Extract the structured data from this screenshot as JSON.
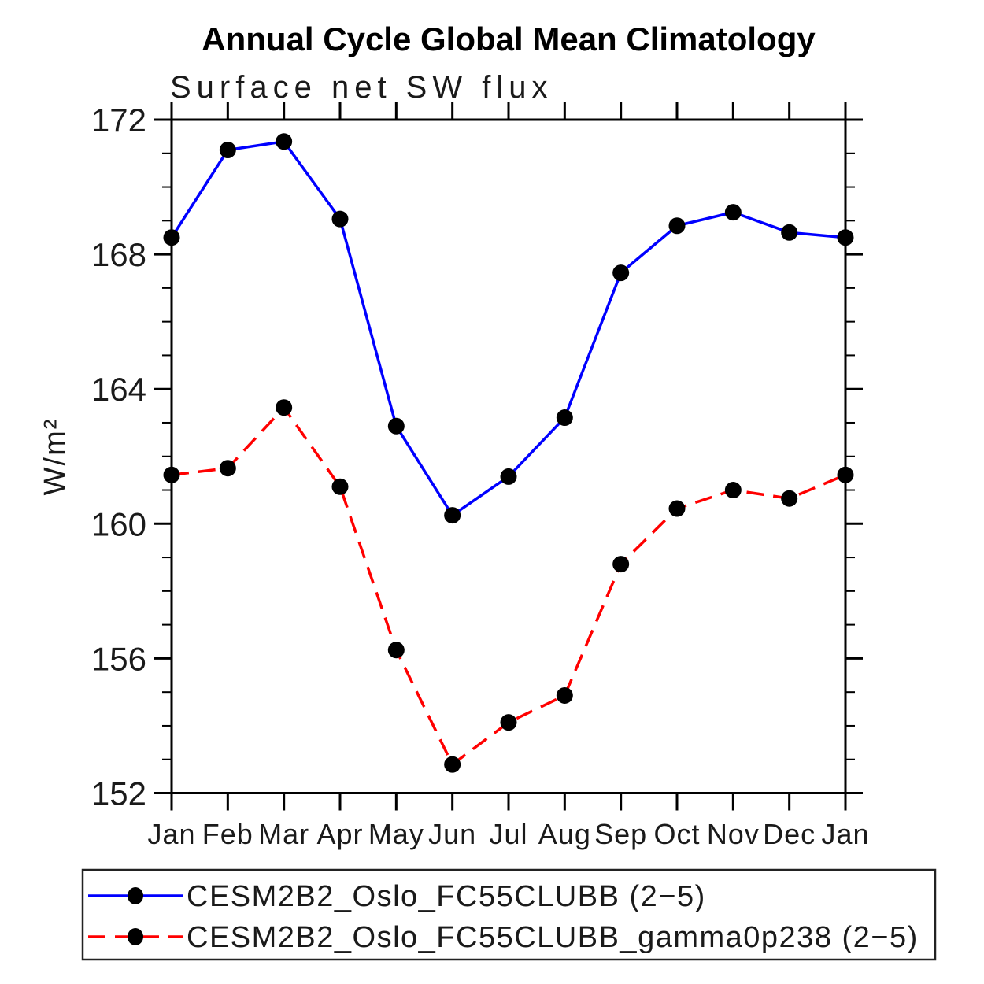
{
  "chart_data": {
    "type": "line",
    "title": "Annual Cycle Global Mean Climatology",
    "subtitle": "Surface net SW flux",
    "ylabel": "W/m²",
    "xlabel": "",
    "x_categories": [
      "Jan",
      "Feb",
      "Mar",
      "Apr",
      "May",
      "Jun",
      "Jul",
      "Aug",
      "Sep",
      "Oct",
      "Nov",
      "Dec",
      "Jan"
    ],
    "ylim": [
      152,
      172
    ],
    "y_major_ticks": [
      152,
      156,
      160,
      164,
      168,
      172
    ],
    "y_minor_tick_interval": 1,
    "grid": false,
    "legend_position": "bottom-box",
    "marker": "filled-circle",
    "marker_color": "#000000",
    "series": [
      {
        "name": "CESM2B2_Oslo_FC55CLUBB (2−5)",
        "color": "#0000ff",
        "line_style": "solid",
        "values": [
          168.5,
          171.1,
          171.35,
          169.05,
          162.9,
          160.25,
          161.4,
          163.15,
          167.45,
          168.85,
          169.25,
          168.65,
          168.5
        ]
      },
      {
        "name": "CESM2B2_Oslo_FC55CLUBB_gamma0p238 (2−5)",
        "color": "#ff0000",
        "line_style": "dashed",
        "values": [
          161.45,
          161.65,
          163.45,
          161.1,
          156.25,
          152.85,
          154.1,
          154.9,
          158.8,
          160.45,
          161.0,
          160.75,
          161.45
        ]
      }
    ]
  }
}
